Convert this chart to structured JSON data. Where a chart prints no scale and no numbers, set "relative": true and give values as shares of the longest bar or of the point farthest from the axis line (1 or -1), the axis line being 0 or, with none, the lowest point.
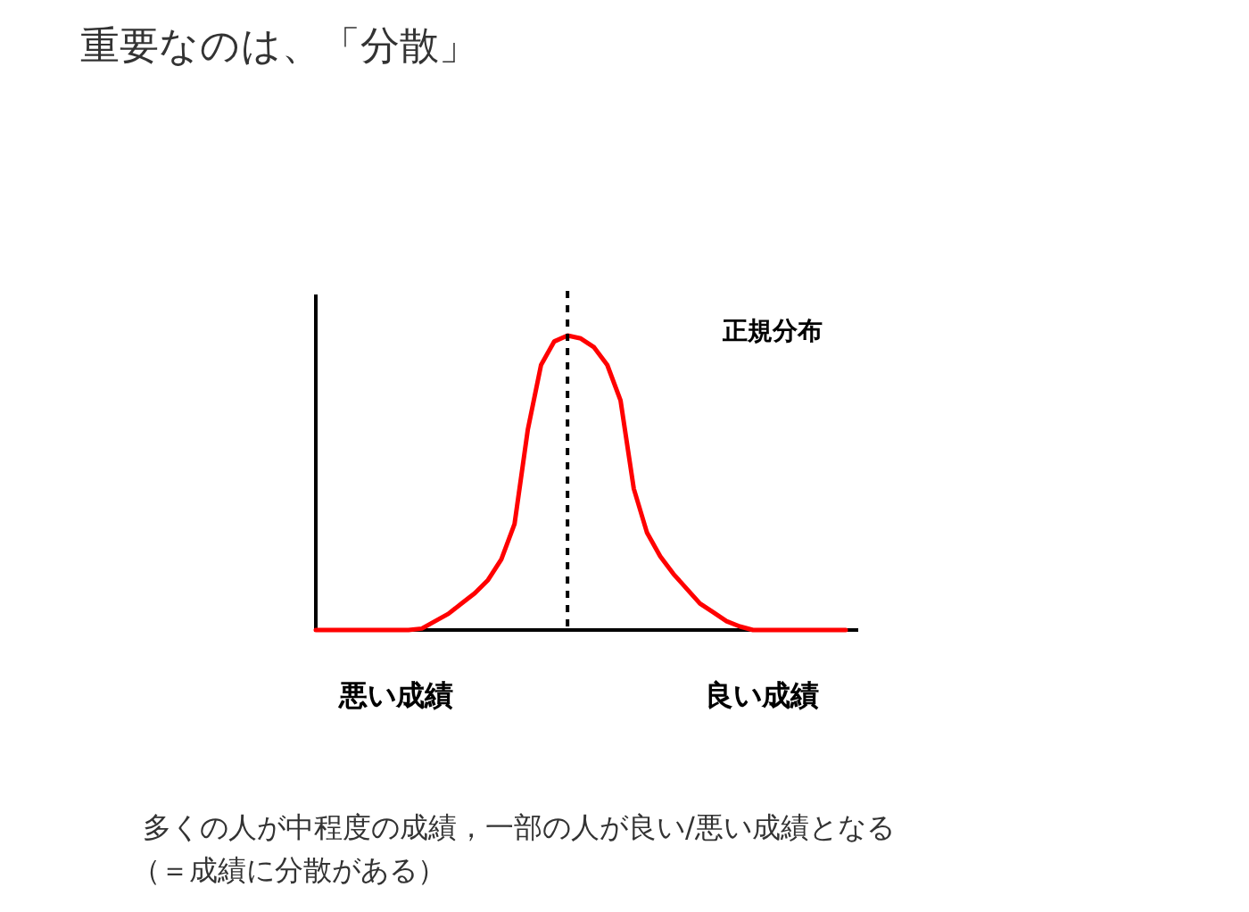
{
  "chart_data": {
    "type": "line",
    "relative": true,
    "title": "重要なのは、「分散」",
    "categories": [
      null,
      null,
      null,
      null,
      null,
      null,
      null,
      null,
      null,
      null,
      null,
      null,
      null,
      null,
      null,
      null,
      null,
      null,
      null,
      null,
      null,
      null,
      null,
      null,
      null,
      null,
      null,
      null,
      null,
      null,
      null,
      null,
      null,
      null,
      null,
      null,
      null,
      null,
      null,
      null,
      null
    ],
    "series": [
      {
        "name": "正規分布",
        "color": "#ff0000",
        "values": [
          0,
          0,
          0,
          0,
          0,
          0,
          0,
          0,
          0.005,
          0.03,
          0.055,
          0.09,
          0.125,
          0.17,
          0.24,
          0.36,
          0.68,
          0.9,
          0.98,
          1.0,
          0.99,
          0.96,
          0.9,
          0.78,
          0.48,
          0.33,
          0.25,
          0.19,
          0.14,
          0.09,
          0.06,
          0.03,
          0.012,
          0,
          0,
          0,
          0,
          0,
          0,
          0,
          0
        ]
      }
    ],
    "annotations": [
      "悪い成績",
      "良い成績",
      "多くの人が中程度の成績，一部の人が良い/悪い成績となる",
      "（＝成績に分散がある）"
    ]
  }
}
